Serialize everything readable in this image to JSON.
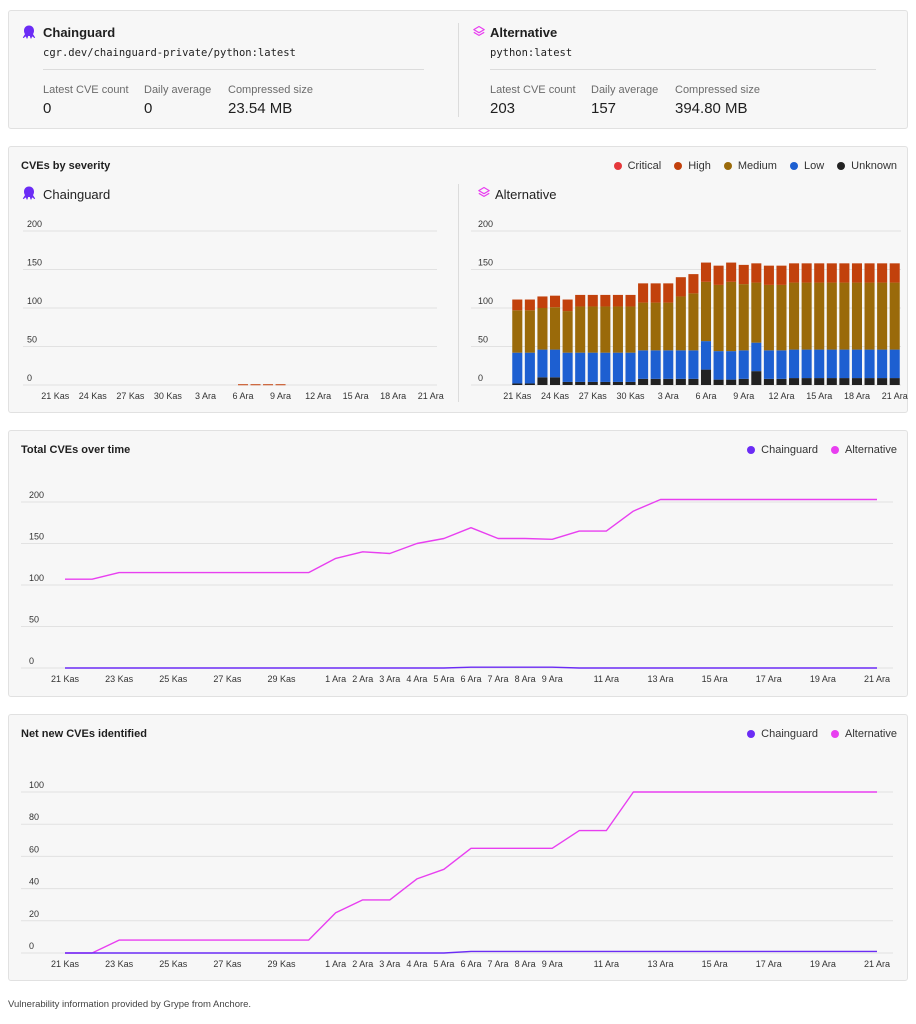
{
  "compare": {
    "left": {
      "name": "Chainguard",
      "icon": "octopus-icon",
      "image_ref": "cgr.dev/chainguard-private/python:latest",
      "stats": [
        {
          "label": "Latest CVE count",
          "value": "0"
        },
        {
          "label": "Daily average",
          "value": "0"
        },
        {
          "label": "Compressed size",
          "value": "23.54 MB"
        }
      ]
    },
    "right": {
      "name": "Alternative",
      "icon": "layers-icon",
      "image_ref": "python:latest",
      "stats": [
        {
          "label": "Latest CVE count",
          "value": "203"
        },
        {
          "label": "Daily average",
          "value": "157"
        },
        {
          "label": "Compressed size",
          "value": "394.80 MB"
        }
      ]
    }
  },
  "severity_panel": {
    "title": "CVEs by severity",
    "legend": [
      {
        "label": "Critical",
        "color": "#e5383b"
      },
      {
        "label": "High",
        "color": "#c2410c"
      },
      {
        "label": "Medium",
        "color": "#9a6a0a"
      },
      {
        "label": "Low",
        "color": "#1d5fd1"
      },
      {
        "label": "Unknown",
        "color": "#222222"
      }
    ],
    "left_name": "Chainguard",
    "right_name": "Alternative"
  },
  "total_panel": {
    "title": "Total CVEs over time",
    "legend": [
      {
        "label": "Chainguard",
        "color": "#6b2cf5"
      },
      {
        "label": "Alternative",
        "color": "#e83ff0"
      }
    ]
  },
  "net_panel": {
    "title": "Net new CVEs identified",
    "legend": [
      {
        "label": "Chainguard",
        "color": "#6b2cf5"
      },
      {
        "label": "Alternative",
        "color": "#e83ff0"
      }
    ]
  },
  "footer": "Vulnerability information provided by Grype from Anchore.",
  "chart_data": [
    {
      "type": "bar",
      "title": "CVEs by severity",
      "subtitle": "Chainguard",
      "x_ticks": [
        "21 Kas",
        "24 Kas",
        "27 Kas",
        "30 Kas",
        "3 Ara",
        "6 Ara",
        "9 Ara",
        "12 Ara",
        "15 Ara",
        "18 Ara",
        "21 Ara"
      ],
      "ylim": [
        0,
        200
      ],
      "y_ticks": [
        0,
        50,
        100,
        150,
        200
      ],
      "stacked": true,
      "categories": [
        "21 Kas",
        "22 Kas",
        "23 Kas",
        "24 Kas",
        "25 Kas",
        "26 Kas",
        "27 Kas",
        "28 Kas",
        "29 Kas",
        "30 Kas",
        "1 Ara",
        "2 Ara",
        "3 Ara",
        "4 Ara",
        "5 Ara",
        "6 Ara",
        "7 Ara",
        "8 Ara",
        "9 Ara",
        "10 Ara",
        "11 Ara",
        "12 Ara",
        "13 Ara",
        "14 Ara",
        "15 Ara",
        "16 Ara",
        "17 Ara",
        "18 Ara",
        "19 Ara",
        "20 Ara",
        "21 Ara"
      ],
      "series": [
        {
          "name": "Critical",
          "values": [
            0,
            0,
            0,
            0,
            0,
            0,
            0,
            0,
            0,
            0,
            0,
            0,
            0,
            0,
            0,
            0,
            0,
            0,
            0,
            0,
            0,
            0,
            0,
            0,
            0,
            0,
            0,
            0,
            0,
            0,
            0
          ]
        },
        {
          "name": "High",
          "values": [
            0,
            0,
            0,
            0,
            0,
            0,
            0,
            0,
            0,
            0,
            0,
            0,
            0,
            0,
            0,
            1,
            1,
            1,
            1,
            0,
            0,
            0,
            0,
            0,
            0,
            0,
            0,
            0,
            0,
            0,
            0
          ]
        },
        {
          "name": "Medium",
          "values": [
            0,
            0,
            0,
            0,
            0,
            0,
            0,
            0,
            0,
            0,
            0,
            0,
            0,
            0,
            0,
            0,
            0,
            0,
            0,
            0,
            0,
            0,
            0,
            0,
            0,
            0,
            0,
            0,
            0,
            0,
            0
          ]
        },
        {
          "name": "Low",
          "values": [
            0,
            0,
            0,
            0,
            0,
            0,
            0,
            0,
            0,
            0,
            0,
            0,
            0,
            0,
            0,
            0,
            0,
            0,
            0,
            0,
            0,
            0,
            0,
            0,
            0,
            0,
            0,
            0,
            0,
            0,
            0
          ]
        },
        {
          "name": "Unknown",
          "values": [
            0,
            0,
            0,
            0,
            0,
            0,
            0,
            0,
            0,
            0,
            0,
            0,
            0,
            0,
            0,
            0,
            0,
            0,
            0,
            0,
            0,
            0,
            0,
            0,
            0,
            0,
            0,
            0,
            0,
            0,
            0
          ]
        }
      ]
    },
    {
      "type": "bar",
      "title": "CVEs by severity",
      "subtitle": "Alternative",
      "x_ticks": [
        "21 Kas",
        "24 Kas",
        "27 Kas",
        "30 Kas",
        "3 Ara",
        "6 Ara",
        "9 Ara",
        "12 Ara",
        "15 Ara",
        "18 Ara",
        "21 Ara"
      ],
      "ylim": [
        0,
        200
      ],
      "y_ticks": [
        0,
        50,
        100,
        150,
        200
      ],
      "stacked": true,
      "categories": [
        "21 Kas",
        "22 Kas",
        "23 Kas",
        "24 Kas",
        "25 Kas",
        "26 Kas",
        "27 Kas",
        "28 Kas",
        "29 Kas",
        "30 Kas",
        "1 Ara",
        "2 Ara",
        "3 Ara",
        "4 Ara",
        "5 Ara",
        "6 Ara",
        "7 Ara",
        "8 Ara",
        "9 Ara",
        "10 Ara",
        "11 Ara",
        "12 Ara",
        "13 Ara",
        "14 Ara",
        "15 Ara",
        "16 Ara",
        "17 Ara",
        "18 Ara",
        "19 Ara",
        "20 Ara",
        "21 Ara"
      ],
      "series": [
        {
          "name": "Critical",
          "values": [
            0,
            0,
            0,
            0,
            0,
            0,
            0,
            0,
            0,
            0,
            0,
            0,
            0,
            0,
            0,
            0,
            0,
            0,
            0,
            0,
            0,
            0,
            0,
            0,
            0,
            0,
            0,
            0,
            0,
            0,
            0
          ]
        },
        {
          "name": "High",
          "values": [
            14,
            14,
            15,
            15,
            15,
            15,
            15,
            15,
            15,
            15,
            25,
            25,
            25,
            25,
            25,
            25,
            25,
            25,
            25,
            25,
            25,
            25,
            25,
            25,
            25,
            25,
            25,
            25,
            25,
            25,
            25
          ]
        },
        {
          "name": "Medium",
          "values": [
            55,
            55,
            54,
            55,
            54,
            60,
            60,
            60,
            60,
            60,
            62,
            62,
            62,
            70,
            74,
            77,
            86,
            90,
            86,
            78,
            85,
            85,
            87,
            87,
            87,
            87,
            87,
            87,
            87,
            87,
            87
          ]
        },
        {
          "name": "Low",
          "values": [
            40,
            40,
            36,
            36,
            38,
            38,
            38,
            38,
            38,
            38,
            37,
            37,
            37,
            37,
            37,
            37,
            37,
            37,
            37,
            37,
            37,
            37,
            37,
            37,
            37,
            37,
            37,
            37,
            37,
            37,
            37
          ]
        },
        {
          "name": "Unknown",
          "values": [
            2,
            2,
            10,
            10,
            4,
            4,
            4,
            4,
            4,
            4,
            8,
            8,
            8,
            8,
            8,
            20,
            7,
            7,
            8,
            18,
            8,
            8,
            9,
            9,
            9,
            9,
            9,
            9,
            9,
            9,
            9
          ]
        }
      ]
    },
    {
      "type": "line",
      "title": "Total CVEs over time",
      "x": [
        "21 Kas",
        "22 Kas",
        "23 Kas",
        "24 Kas",
        "25 Kas",
        "26 Kas",
        "27 Kas",
        "28 Kas",
        "29 Kas",
        "30 Kas",
        "1 Ara",
        "2 Ara",
        "3 Ara",
        "4 Ara",
        "5 Ara",
        "6 Ara",
        "7 Ara",
        "8 Ara",
        "9 Ara",
        "10 Ara",
        "11 Ara",
        "12 Ara",
        "13 Ara",
        "14 Ara",
        "15 Ara",
        "16 Ara",
        "17 Ara",
        "18 Ara",
        "19 Ara",
        "20 Ara",
        "21 Ara"
      ],
      "x_ticks": [
        "21 Kas",
        "23 Kas",
        "25 Kas",
        "27 Kas",
        "29 Kas",
        "1 Ara",
        "2 Ara",
        "3 Ara",
        "4 Ara",
        "5 Ara",
        "6 Ara",
        "7 Ara",
        "8 Ara",
        "9 Ara",
        "11 Ara",
        "13 Ara",
        "15 Ara",
        "17 Ara",
        "19 Ara",
        "21 Ara"
      ],
      "ylim": [
        0,
        200
      ],
      "y_ticks": [
        0,
        50,
        100,
        150,
        200
      ],
      "series": [
        {
          "name": "Chainguard",
          "values": [
            0,
            0,
            0,
            0,
            0,
            0,
            0,
            0,
            0,
            0,
            0,
            0,
            0,
            0,
            0,
            1,
            1,
            1,
            1,
            0,
            0,
            0,
            0,
            0,
            0,
            0,
            0,
            0,
            0,
            0,
            0
          ]
        },
        {
          "name": "Alternative",
          "values": [
            107,
            107,
            115,
            115,
            115,
            115,
            115,
            115,
            115,
            115,
            132,
            140,
            138,
            150,
            156,
            169,
            156,
            156,
            155,
            165,
            165,
            189,
            203,
            203,
            203,
            203,
            203,
            203,
            203,
            203,
            203
          ]
        }
      ]
    },
    {
      "type": "line",
      "title": "Net new CVEs identified",
      "x": [
        "21 Kas",
        "22 Kas",
        "23 Kas",
        "24 Kas",
        "25 Kas",
        "26 Kas",
        "27 Kas",
        "28 Kas",
        "29 Kas",
        "30 Kas",
        "1 Ara",
        "2 Ara",
        "3 Ara",
        "4 Ara",
        "5 Ara",
        "6 Ara",
        "7 Ara",
        "8 Ara",
        "9 Ara",
        "10 Ara",
        "11 Ara",
        "12 Ara",
        "13 Ara",
        "14 Ara",
        "15 Ara",
        "16 Ara",
        "17 Ara",
        "18 Ara",
        "19 Ara",
        "20 Ara",
        "21 Ara"
      ],
      "x_ticks": [
        "21 Kas",
        "23 Kas",
        "25 Kas",
        "27 Kas",
        "29 Kas",
        "1 Ara",
        "2 Ara",
        "3 Ara",
        "4 Ara",
        "5 Ara",
        "6 Ara",
        "7 Ara",
        "8 Ara",
        "9 Ara",
        "11 Ara",
        "13 Ara",
        "15 Ara",
        "17 Ara",
        "19 Ara",
        "21 Ara"
      ],
      "ylim": [
        0,
        100
      ],
      "y_ticks": [
        0,
        20,
        40,
        60,
        80,
        100
      ],
      "series": [
        {
          "name": "Chainguard",
          "values": [
            0,
            0,
            0,
            0,
            0,
            0,
            0,
            0,
            0,
            0,
            0,
            0,
            0,
            0,
            0,
            1,
            1,
            1,
            1,
            1,
            1,
            1,
            1,
            1,
            1,
            1,
            1,
            1,
            1,
            1,
            1
          ]
        },
        {
          "name": "Alternative",
          "values": [
            0,
            0,
            8,
            8,
            8,
            8,
            8,
            8,
            8,
            8,
            25,
            33,
            33,
            46,
            52,
            65,
            65,
            65,
            65,
            76,
            76,
            100,
            100,
            100,
            100,
            100,
            100,
            100,
            100,
            100,
            100
          ]
        }
      ]
    }
  ]
}
